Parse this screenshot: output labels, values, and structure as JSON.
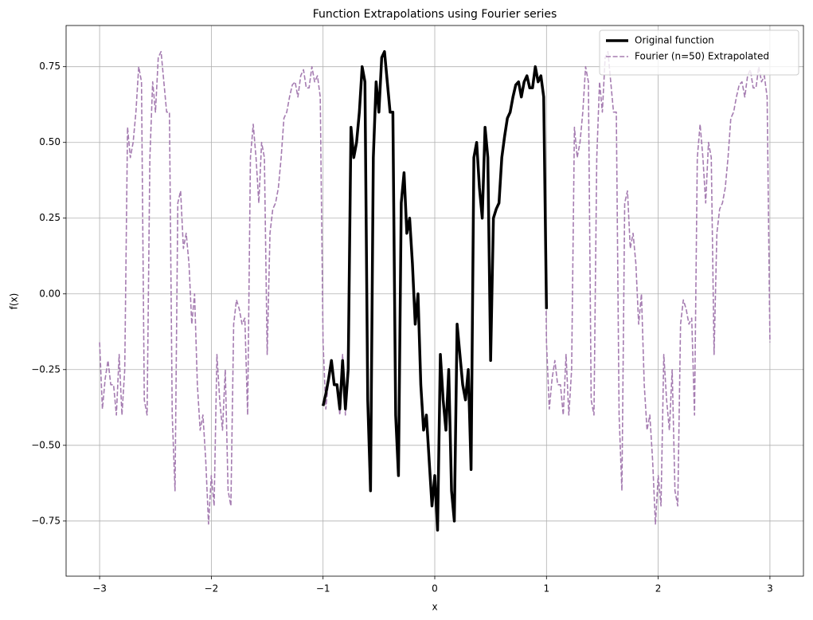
{
  "chart_data": {
    "type": "line",
    "title": "Function Extrapolations using Fourier series",
    "x_label": "x",
    "y_label": "f(x)",
    "xlim": [
      -3.3,
      3.3
    ],
    "ylim": [
      -0.932,
      0.886
    ],
    "xticks": [
      {
        "value": -3,
        "label": "−3"
      },
      {
        "value": -2,
        "label": "−2"
      },
      {
        "value": -1,
        "label": "−1"
      },
      0,
      1,
      2,
      3
    ],
    "yticks": [
      {
        "value": -0.75,
        "label": "−0.75"
      },
      {
        "value": -0.5,
        "label": "−0.50"
      },
      {
        "value": -0.25,
        "label": "−0.25"
      },
      {
        "value": 0,
        "label": "0.00"
      },
      0.25,
      {
        "value": 0.5,
        "label": "0.50"
      },
      0.75
    ],
    "grid": true,
    "legend": "upper right",
    "series": [
      {
        "name": "Original function",
        "color": "#000000",
        "style": "solid",
        "x": [
          -1,
          -0.975,
          -0.95,
          -0.925,
          -0.9,
          -0.875,
          -0.85,
          -0.825,
          -0.8,
          -0.775,
          -0.75,
          -0.725,
          -0.7,
          -0.675,
          -0.65,
          -0.625,
          -0.6,
          -0.575,
          -0.55,
          -0.525,
          -0.5,
          -0.475,
          -0.45,
          -0.425,
          -0.4,
          -0.375,
          -0.35,
          -0.325,
          -0.3,
          -0.275,
          -0.25,
          -0.225,
          -0.2,
          -0.175,
          -0.15,
          -0.125,
          -0.1,
          -0.075,
          -0.05,
          -0.025,
          0,
          0.025,
          0.05,
          0.075,
          0.1,
          0.125,
          0.15,
          0.175,
          0.2,
          0.225,
          0.25,
          0.275,
          0.3,
          0.325,
          0.35,
          0.375,
          0.4,
          0.425,
          0.45,
          0.475,
          0.5,
          0.525,
          0.55,
          0.575,
          0.6,
          0.625,
          0.65,
          0.675,
          0.7,
          0.725,
          0.75,
          0.775,
          0.8,
          0.825,
          0.85,
          0.875,
          0.9,
          0.925,
          0.95,
          0.975,
          1
        ],
        "values": [
          -0.37,
          -0.33,
          -0.28,
          -0.22,
          -0.3,
          -0.3,
          -0.38,
          -0.22,
          -0.38,
          -0.25,
          0.55,
          0.45,
          0.5,
          0.6,
          0.75,
          0.7,
          -0.35,
          -0.65,
          0.45,
          0.7,
          0.6,
          0.78,
          0.8,
          0.7,
          0.6,
          0.6,
          -0.4,
          -0.6,
          0.3,
          0.4,
          0.2,
          0.25,
          0.1,
          -0.1,
          0.0,
          -0.3,
          -0.45,
          -0.4,
          -0.55,
          -0.7,
          -0.6,
          -0.78,
          -0.2,
          -0.35,
          -0.45,
          -0.25,
          -0.65,
          -0.75,
          -0.1,
          -0.2,
          -0.3,
          -0.35,
          -0.25,
          -0.58,
          0.45,
          0.5,
          0.35,
          0.25,
          0.55,
          0.45,
          -0.22,
          0.25,
          0.28,
          0.3,
          0.45,
          0.52,
          0.58,
          0.6,
          0.65,
          0.69,
          0.7,
          0.65,
          0.7,
          0.72,
          0.68,
          0.68,
          0.75,
          0.7,
          0.72,
          0.65,
          -0.05
        ]
      },
      {
        "name": "Fourier (n=50) Extrapolated",
        "color": "#a57cb1",
        "style": "dashed",
        "x": [
          -3,
          -2.975,
          -2.95,
          -2.925,
          -2.9,
          -2.875,
          -2.85,
          -2.825,
          -2.8,
          -2.775,
          -2.75,
          -2.725,
          -2.7,
          -2.675,
          -2.65,
          -2.625,
          -2.6,
          -2.575,
          -2.55,
          -2.525,
          -2.5,
          -2.475,
          -2.45,
          -2.425,
          -2.4,
          -2.375,
          -2.35,
          -2.325,
          -2.3,
          -2.275,
          -2.25,
          -2.225,
          -2.2,
          -2.175,
          -2.15,
          -2.125,
          -2.1,
          -2.075,
          -2.05,
          -2.025,
          -2,
          -1.975,
          -1.95,
          -1.925,
          -1.9,
          -1.875,
          -1.85,
          -1.825,
          -1.8,
          -1.775,
          -1.75,
          -1.725,
          -1.7,
          -1.675,
          -1.65,
          -1.625,
          -1.6,
          -1.575,
          -1.55,
          -1.525,
          -1.5,
          -1.475,
          -1.45,
          -1.425,
          -1.4,
          -1.375,
          -1.35,
          -1.325,
          -1.3,
          -1.275,
          -1.25,
          -1.225,
          -1.2,
          -1.175,
          -1.15,
          -1.125,
          -1.1,
          -1.075,
          -1.05,
          -1.025,
          -1,
          -0.975,
          -0.95,
          -0.925,
          -0.9,
          -0.875,
          -0.85,
          -0.825,
          -0.8,
          -0.775,
          -0.75,
          -0.725,
          -0.7,
          -0.675,
          -0.65,
          -0.625,
          -0.6,
          -0.575,
          -0.55,
          -0.525,
          -0.5,
          -0.475,
          -0.45,
          -0.425,
          -0.4,
          -0.375,
          -0.35,
          -0.325,
          -0.3,
          -0.275,
          -0.25,
          -0.225,
          -0.2,
          -0.175,
          -0.15,
          -0.125,
          -0.1,
          -0.075,
          -0.05,
          -0.025,
          0,
          0.025,
          0.05,
          0.075,
          0.1,
          0.125,
          0.15,
          0.175,
          0.2,
          0.225,
          0.25,
          0.275,
          0.3,
          0.325,
          0.35,
          0.375,
          0.4,
          0.425,
          0.45,
          0.475,
          0.5,
          0.525,
          0.55,
          0.575,
          0.6,
          0.625,
          0.65,
          0.675,
          0.7,
          0.725,
          0.75,
          0.775,
          0.8,
          0.825,
          0.85,
          0.875,
          0.9,
          0.925,
          0.95,
          0.975,
          1,
          1.025,
          1.05,
          1.075,
          1.1,
          1.125,
          1.15,
          1.175,
          1.2,
          1.225,
          1.25,
          1.275,
          1.3,
          1.325,
          1.35,
          1.375,
          1.4,
          1.425,
          1.45,
          1.475,
          1.5,
          1.525,
          1.55,
          1.575,
          1.6,
          1.625,
          1.65,
          1.675,
          1.7,
          1.725,
          1.75,
          1.775,
          1.8,
          1.825,
          1.85,
          1.875,
          1.9,
          1.925,
          1.95,
          1.975,
          2,
          2.025,
          2.05,
          2.075,
          2.1,
          2.125,
          2.15,
          2.175,
          2.2,
          2.225,
          2.25,
          2.275,
          2.3,
          2.325,
          2.35,
          2.375,
          2.4,
          2.425,
          2.45,
          2.475,
          2.5,
          2.525,
          2.55,
          2.575,
          2.6,
          2.625,
          2.65,
          2.675,
          2.7,
          2.725,
          2.75,
          2.775,
          2.8,
          2.825,
          2.85,
          2.875,
          2.9,
          2.925,
          2.95,
          2.975,
          3
        ],
        "values": [
          -0.16,
          -0.38,
          -0.28,
          -0.22,
          -0.3,
          -0.3,
          -0.4,
          -0.2,
          -0.4,
          -0.25,
          0.55,
          0.45,
          0.5,
          0.6,
          0.75,
          0.7,
          -0.35,
          -0.4,
          0.45,
          0.7,
          0.6,
          0.78,
          0.8,
          0.7,
          0.6,
          0.6,
          -0.4,
          -0.65,
          0.3,
          0.34,
          0.15,
          0.2,
          0.1,
          -0.1,
          0.0,
          -0.3,
          -0.45,
          -0.4,
          -0.55,
          -0.76,
          -0.6,
          -0.7,
          -0.2,
          -0.35,
          -0.45,
          -0.25,
          -0.65,
          -0.7,
          -0.1,
          -0.02,
          -0.05,
          -0.1,
          -0.08,
          -0.4,
          0.45,
          0.56,
          0.45,
          0.3,
          0.5,
          0.45,
          -0.2,
          0.2,
          0.28,
          0.3,
          0.35,
          0.45,
          0.58,
          0.6,
          0.65,
          0.69,
          0.7,
          0.65,
          0.72,
          0.74,
          0.68,
          0.68,
          0.75,
          0.7,
          0.72,
          0.65,
          -0.16,
          -0.38,
          -0.28,
          -0.22,
          -0.3,
          -0.3,
          -0.4,
          -0.2,
          -0.4,
          -0.25,
          0.55,
          0.45,
          0.5,
          0.6,
          0.75,
          0.7,
          -0.35,
          -0.65,
          0.45,
          0.7,
          0.6,
          0.78,
          0.8,
          0.7,
          0.6,
          0.6,
          -0.4,
          -0.6,
          0.3,
          0.4,
          0.2,
          0.25,
          0.1,
          -0.1,
          0.0,
          -0.3,
          -0.45,
          -0.4,
          -0.55,
          -0.7,
          -0.6,
          -0.78,
          -0.2,
          -0.35,
          -0.45,
          -0.25,
          -0.65,
          -0.75,
          -0.1,
          -0.2,
          -0.3,
          -0.35,
          -0.25,
          -0.58,
          0.45,
          0.5,
          0.35,
          0.25,
          0.55,
          0.45,
          -0.22,
          0.25,
          0.28,
          0.3,
          0.45,
          0.52,
          0.58,
          0.6,
          0.65,
          0.69,
          0.7,
          0.65,
          0.7,
          0.72,
          0.68,
          0.68,
          0.75,
          0.7,
          0.72,
          0.65,
          -0.16,
          -0.38,
          -0.28,
          -0.22,
          -0.3,
          -0.3,
          -0.4,
          -0.2,
          -0.4,
          -0.25,
          0.55,
          0.45,
          0.5,
          0.6,
          0.75,
          0.7,
          -0.35,
          -0.4,
          0.45,
          0.7,
          0.6,
          0.78,
          0.8,
          0.7,
          0.6,
          0.6,
          -0.4,
          -0.65,
          0.3,
          0.34,
          0.15,
          0.2,
          0.1,
          -0.1,
          0.0,
          -0.3,
          -0.45,
          -0.4,
          -0.55,
          -0.76,
          -0.6,
          -0.7,
          -0.2,
          -0.35,
          -0.45,
          -0.25,
          -0.65,
          -0.7,
          -0.1,
          -0.02,
          -0.05,
          -0.1,
          -0.08,
          -0.4,
          0.45,
          0.56,
          0.45,
          0.3,
          0.5,
          0.45,
          -0.2,
          0.2,
          0.28,
          0.3,
          0.35,
          0.45,
          0.58,
          0.6,
          0.65,
          0.69,
          0.7,
          0.65,
          0.72,
          0.74,
          0.68,
          0.68,
          0.75,
          0.7,
          0.72,
          0.65,
          -0.16
        ]
      }
    ]
  }
}
